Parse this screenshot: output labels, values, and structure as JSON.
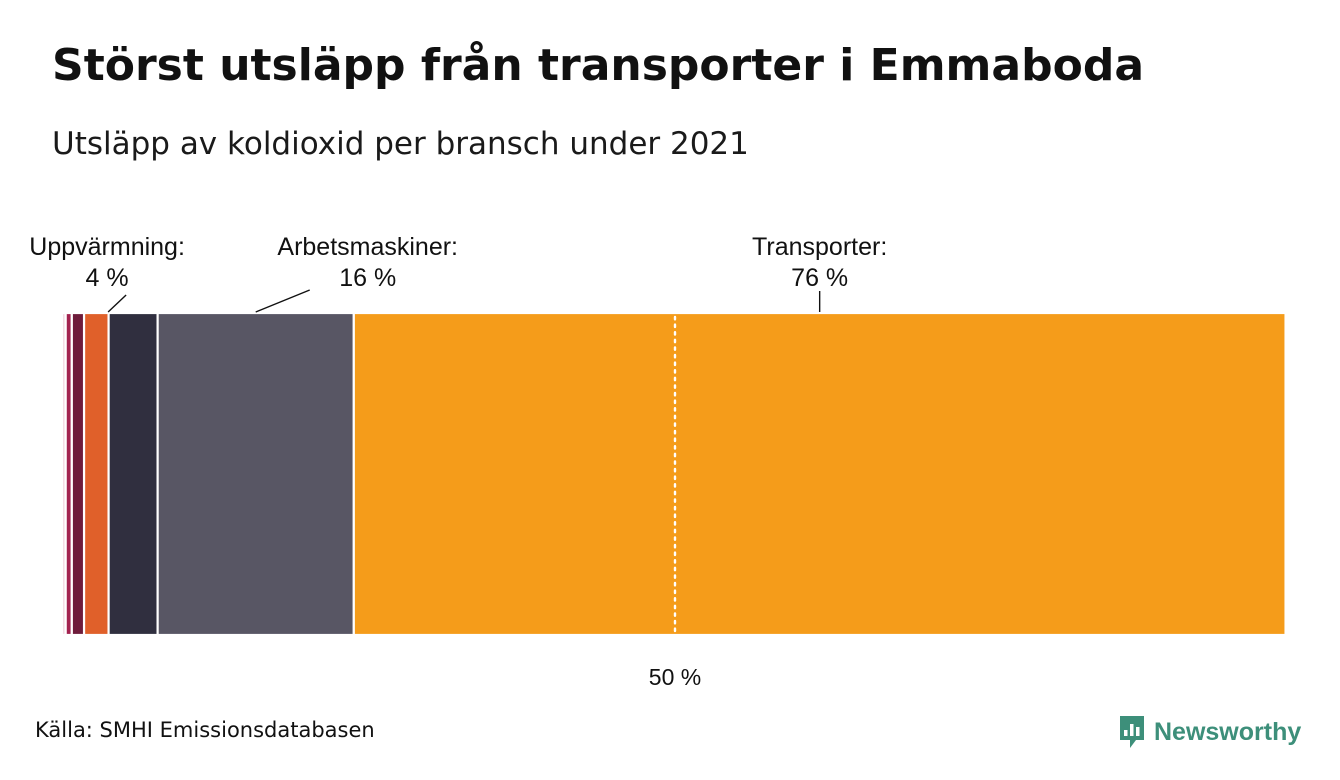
{
  "title": "Störst utsläpp från transporter i Emmaboda",
  "subtitle": "Utsläpp av koldioxid per bransch under 2021",
  "chart_data": {
    "type": "stacked-bar-100",
    "orientation": "horizontal",
    "unit": "%",
    "segments": [
      {
        "name": "",
        "value": 0.3,
        "color": "#f3d9e2"
      },
      {
        "name": "",
        "value": 0.5,
        "color": "#a3224f"
      },
      {
        "name": "",
        "value": 1.0,
        "color": "#6e1c3b"
      },
      {
        "name": "",
        "value": 2.0,
        "color": "#e0602a"
      },
      {
        "name": "Uppvärmning",
        "value": 4,
        "value_label": "4 %",
        "color": "#302f3f"
      },
      {
        "name": "Arbetsmaskiner",
        "value": 16,
        "value_label": "16 %",
        "color": "#585664"
      },
      {
        "name": "Transporter",
        "value": 76,
        "value_label": "76 %",
        "color": "#f59c1a"
      }
    ],
    "reference_line": {
      "value": 50,
      "label": "50 %",
      "style": "dotted",
      "color": "#ffffff"
    },
    "xlim": [
      0,
      100
    ]
  },
  "source": "Källa: SMHI Emissionsdatabasen",
  "brand": {
    "name": "Newsworthy",
    "color": "#3d8f7a"
  }
}
